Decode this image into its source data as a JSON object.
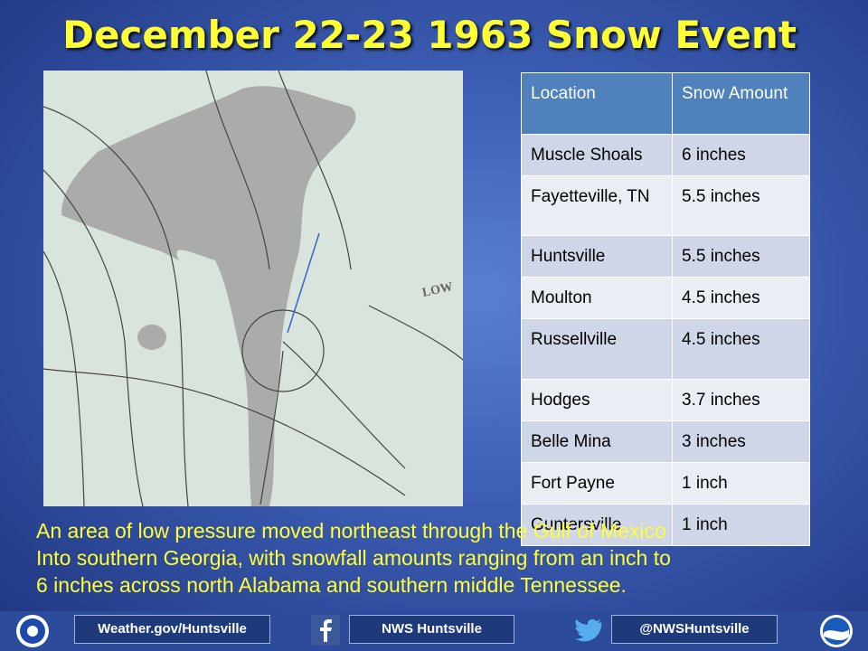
{
  "title": "December 22-23 1963 Snow Event",
  "map": {
    "label": "LOW"
  },
  "table": {
    "header": [
      "Location",
      "Snow Amount"
    ],
    "rows": [
      [
        "Muscle Shoals",
        "6 inches"
      ],
      [
        "Fayetteville, TN",
        "5.5 inches"
      ],
      [
        "Huntsville",
        "5.5 inches"
      ],
      [
        "Moulton",
        "4.5 inches"
      ],
      [
        "Russellville",
        "4.5 inches"
      ],
      [
        "Hodges",
        "3.7 inches"
      ],
      [
        "Belle Mina",
        "3 inches"
      ],
      [
        "Fort Payne",
        "1 inch"
      ],
      [
        "Guntersville",
        "1 inch"
      ]
    ]
  },
  "caption": [
    "An area of low pressure moved northeast through the Gulf of Mexico",
    "Into southern Georgia, with snowfall amounts ranging from an inch to",
    "6 inches across north Alabama and southern middle Tennessee."
  ],
  "footer": {
    "links": [
      "Weather.gov/Huntsville",
      "NWS Huntsville",
      "@NWSHuntsville"
    ]
  }
}
